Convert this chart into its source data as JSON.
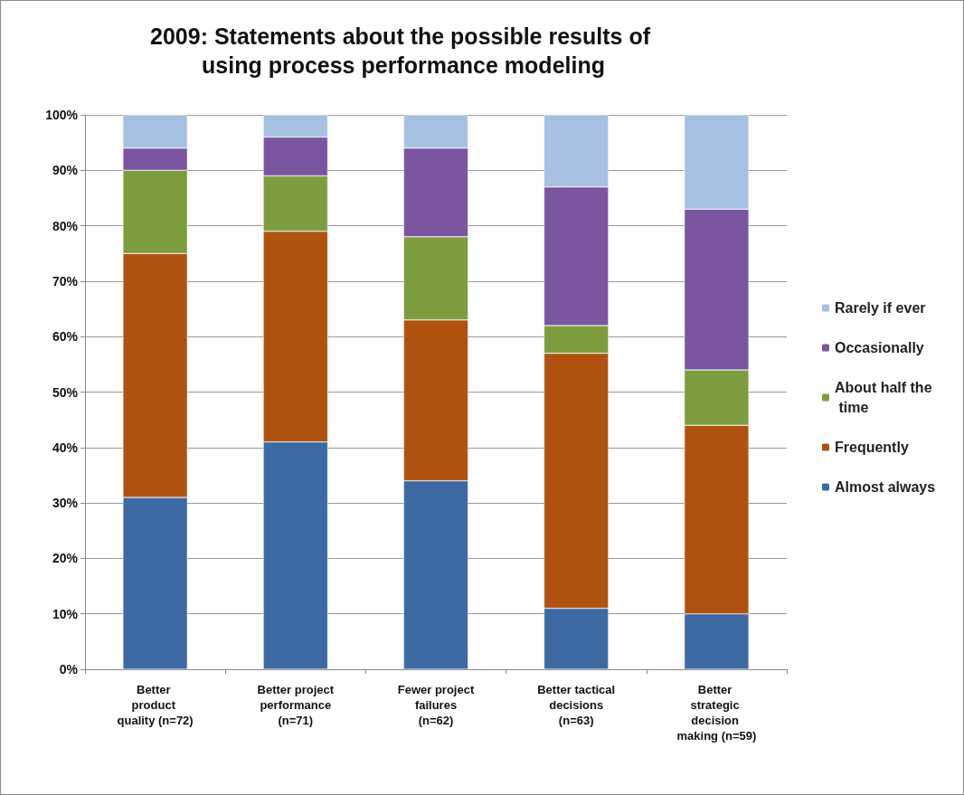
{
  "chart_data": {
    "type": "bar",
    "title": "2009: Statements about the possible results of using process performance modeling",
    "categories": [
      "Better product quality (n=72)",
      "Better project performance (n=71)",
      "Fewer project failures (n=62)",
      "Better tactical decisions (n=63)",
      "Better strategic decision making (n=59)"
    ],
    "stacked": true,
    "grid": "y",
    "legend": "right",
    "ylim": [
      0,
      100
    ],
    "yticks": [
      {
        "value": 0,
        "label": "0%"
      },
      {
        "value": 10,
        "label": "10%"
      },
      {
        "value": 20,
        "label": "20%"
      },
      {
        "value": 30,
        "label": "30%"
      },
      {
        "value": 40,
        "label": "40%"
      },
      {
        "value": 50,
        "label": "50%"
      },
      {
        "value": 60,
        "label": "60%"
      },
      {
        "value": 70,
        "label": "70%"
      },
      {
        "value": 80,
        "label": "80%"
      },
      {
        "value": 90,
        "label": "90%"
      },
      {
        "value": 100,
        "label": "100%"
      }
    ],
    "series": [
      {
        "name": "Almost always",
        "color": "#3d6aa2",
        "values": [
          31,
          41,
          34,
          11,
          10
        ]
      },
      {
        "name": "Frequently",
        "color": "#b0520f",
        "values": [
          44,
          38,
          29,
          46,
          34
        ]
      },
      {
        "name": "About half the time",
        "color": "#7d9c3e",
        "values": [
          15,
          10,
          15,
          5,
          10
        ]
      },
      {
        "name": "Occasionally",
        "color": "#7a56a0",
        "values": [
          4,
          7,
          16,
          25,
          29
        ]
      },
      {
        "name": "Rarely if ever",
        "color": "#a6c0e2",
        "values": [
          6,
          4,
          6,
          13,
          17
        ]
      }
    ]
  }
}
